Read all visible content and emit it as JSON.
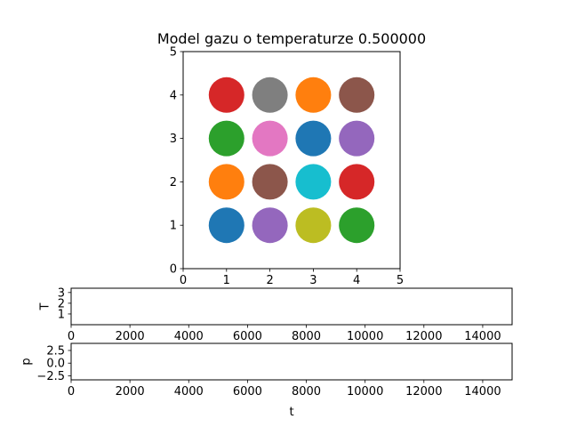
{
  "chart_data": [
    {
      "type": "scatter",
      "title": "Model gazu o temperaturze 0.500000",
      "xlim": [
        0,
        5
      ],
      "ylim": [
        0,
        5
      ],
      "xticks": [
        0,
        1,
        2,
        3,
        4,
        5
      ],
      "yticks": [
        0,
        1,
        2,
        3,
        4,
        5
      ],
      "points": [
        {
          "x": 1,
          "y": 4,
          "color": "#d62728"
        },
        {
          "x": 2,
          "y": 4,
          "color": "#7f7f7f"
        },
        {
          "x": 3,
          "y": 4,
          "color": "#ff7f0e"
        },
        {
          "x": 4,
          "y": 4,
          "color": "#8c564b"
        },
        {
          "x": 1,
          "y": 3,
          "color": "#2ca02c"
        },
        {
          "x": 2,
          "y": 3,
          "color": "#e377c2"
        },
        {
          "x": 3,
          "y": 3,
          "color": "#1f77b4"
        },
        {
          "x": 4,
          "y": 3,
          "color": "#9467bd"
        },
        {
          "x": 1,
          "y": 2,
          "color": "#ff7f0e"
        },
        {
          "x": 2,
          "y": 2,
          "color": "#8c564b"
        },
        {
          "x": 3,
          "y": 2,
          "color": "#17becf"
        },
        {
          "x": 4,
          "y": 2,
          "color": "#d62728"
        },
        {
          "x": 1,
          "y": 1,
          "color": "#1f77b4"
        },
        {
          "x": 2,
          "y": 1,
          "color": "#9467bd"
        },
        {
          "x": 3,
          "y": 1,
          "color": "#bcbd22"
        },
        {
          "x": 4,
          "y": 1,
          "color": "#2ca02c"
        }
      ]
    },
    {
      "type": "line",
      "ylabel": "T",
      "xlim": [
        0,
        15000
      ],
      "ylim": [
        0,
        3.4
      ],
      "xticks": [
        0,
        2000,
        4000,
        6000,
        8000,
        10000,
        12000,
        14000
      ],
      "yticks": [
        1,
        2,
        3
      ],
      "series": []
    },
    {
      "type": "line",
      "ylabel": "p",
      "xlabel": "t",
      "xlim": [
        0,
        15000
      ],
      "ylim": [
        -3.3,
        3.9
      ],
      "xticks": [
        0,
        2000,
        4000,
        6000,
        8000,
        10000,
        12000,
        14000
      ],
      "yticks": [
        -2.5,
        0.0,
        2.5
      ],
      "ytick_labels": [
        "−2.5",
        "0.0",
        "2.5"
      ],
      "series": []
    }
  ]
}
